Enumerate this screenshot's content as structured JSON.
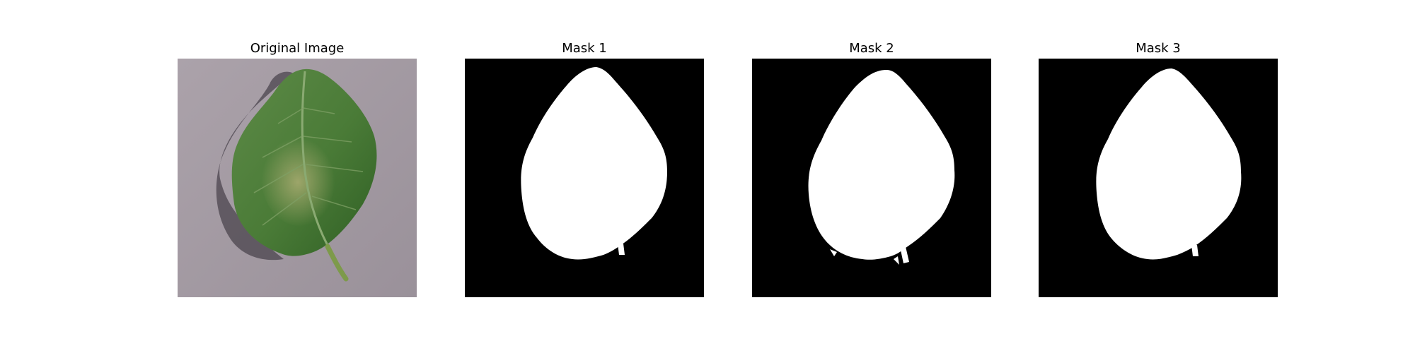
{
  "figure": {
    "panels": [
      {
        "title": "Original Image",
        "kind": "photo"
      },
      {
        "title": "Mask 1",
        "kind": "mask"
      },
      {
        "title": "Mask 2",
        "kind": "mask"
      },
      {
        "title": "Mask 3",
        "kind": "mask"
      }
    ]
  },
  "colors": {
    "mask_background": "#000000",
    "mask_foreground": "#ffffff",
    "photo_background": "#a79ea6",
    "leaf_green": "#3f7a31"
  }
}
